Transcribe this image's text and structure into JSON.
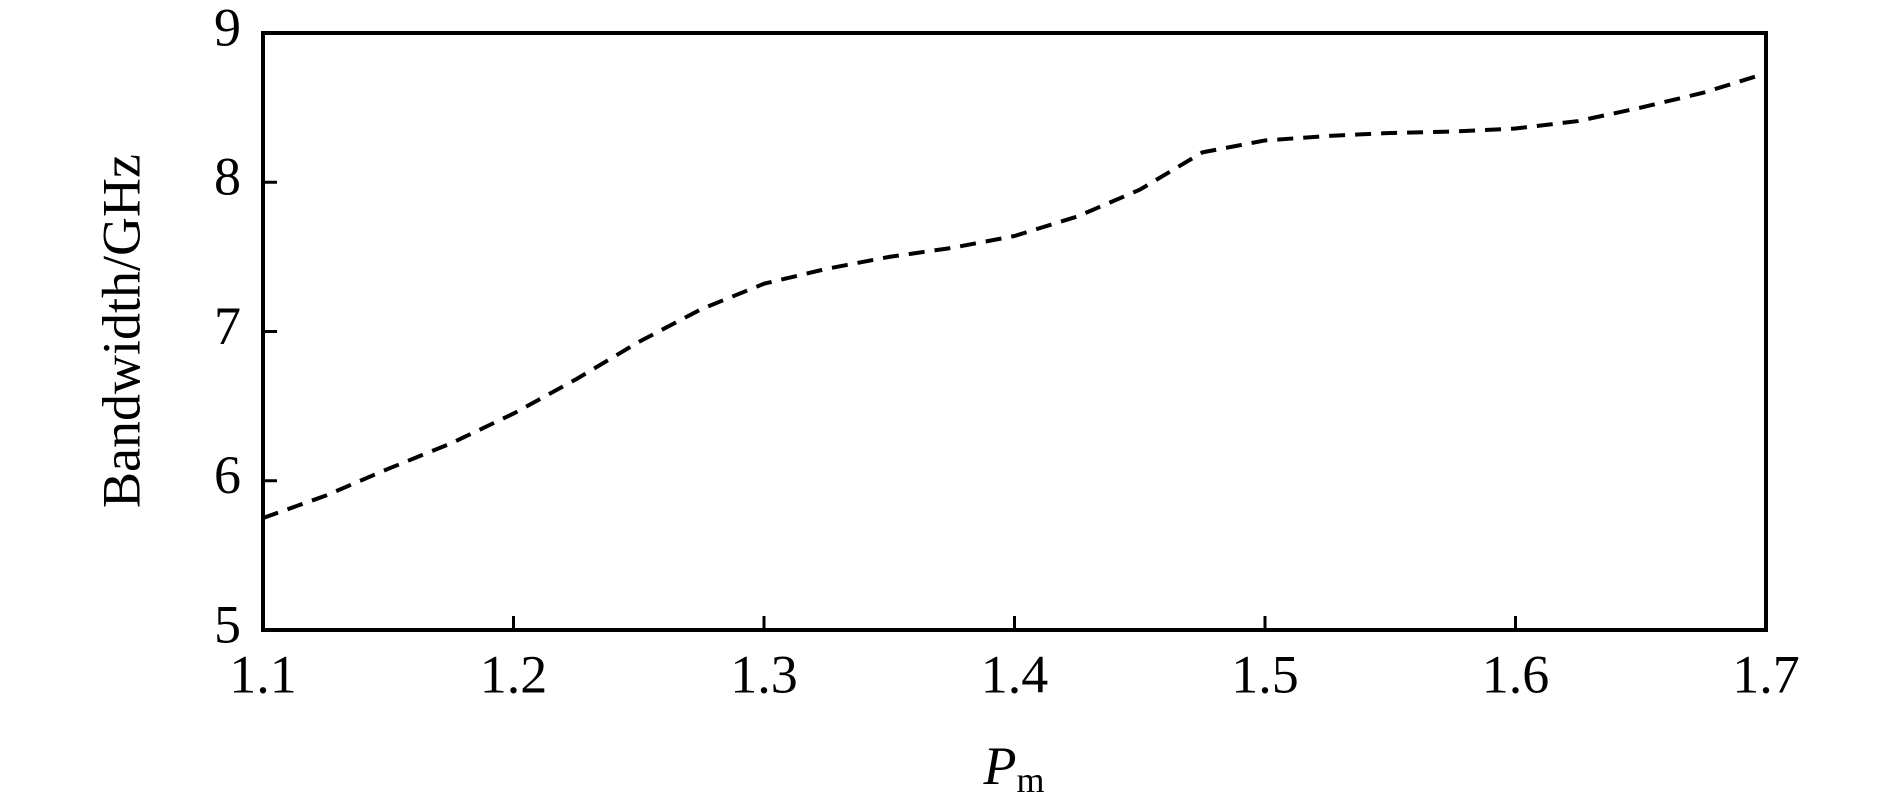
{
  "chart_data": {
    "type": "line",
    "x_label": {
      "symbol": "P",
      "subscript": "m"
    },
    "y_label": "Bandwidth/GHz",
    "x": [
      1.1,
      1.125,
      1.15,
      1.175,
      1.2,
      1.225,
      1.25,
      1.275,
      1.3,
      1.325,
      1.35,
      1.375,
      1.4,
      1.425,
      1.45,
      1.475,
      1.5,
      1.525,
      1.55,
      1.575,
      1.6,
      1.625,
      1.65,
      1.675,
      1.7
    ],
    "series": [
      {
        "color": "#000000",
        "dashed": true,
        "values": [
          5.75,
          5.9,
          6.08,
          6.25,
          6.45,
          6.68,
          6.93,
          7.15,
          7.32,
          7.42,
          7.5,
          7.56,
          7.64,
          7.77,
          7.95,
          8.2,
          8.28,
          8.31,
          8.33,
          8.34,
          8.36,
          8.41,
          8.5,
          8.6,
          8.73
        ]
      }
    ],
    "xlim": [
      1.1,
      1.7
    ],
    "xticks": [
      1.1,
      1.2,
      1.3,
      1.4,
      1.5,
      1.6,
      1.7
    ],
    "ylim": [
      5,
      9
    ],
    "yticks": [
      5,
      6,
      7,
      8,
      9
    ]
  }
}
